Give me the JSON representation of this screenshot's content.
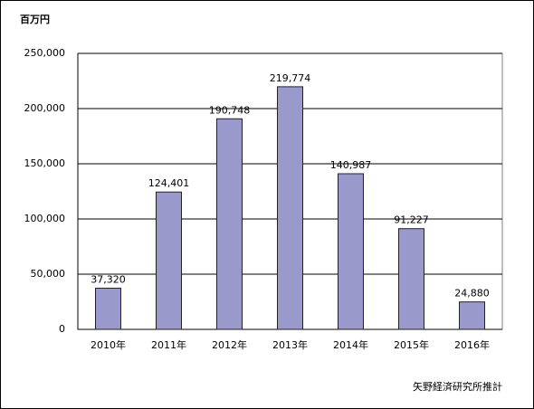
{
  "chart_data": {
    "type": "bar",
    "unit_label": "百万円",
    "source": "矢野経済研究所推計",
    "categories": [
      "2010年",
      "2011年",
      "2012年",
      "2013年",
      "2014年",
      "2015年",
      "2016年"
    ],
    "values": [
      37320,
      124401,
      190748,
      219774,
      140987,
      91227,
      24880
    ],
    "value_labels": [
      "37,320",
      "124,401",
      "190,748",
      "219,774",
      "140,987",
      "91,227",
      "24,880"
    ],
    "color": "#9999cc",
    "ylim": [
      0,
      250000
    ],
    "yticks": [
      0,
      {
        "value": 50000,
        "label": "50,000"
      },
      {
        "value": 100000,
        "label": "100,000"
      },
      {
        "value": 150000,
        "label": "150,000"
      },
      {
        "value": 200000,
        "label": "200,000"
      },
      {
        "value": 250000,
        "label": "250,000"
      }
    ],
    "grid": true
  }
}
